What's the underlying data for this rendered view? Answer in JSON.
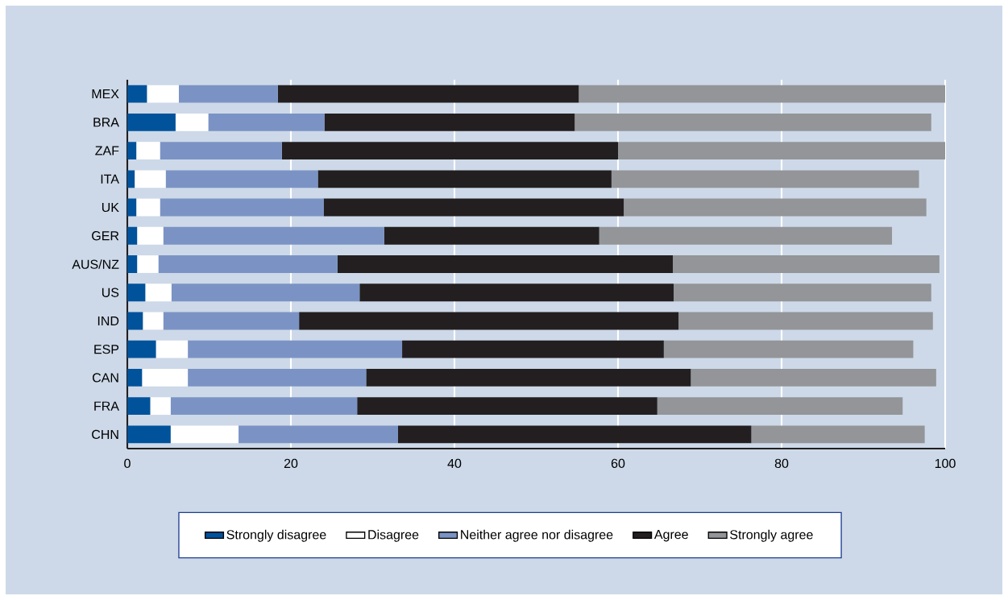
{
  "chart_data": {
    "type": "bar",
    "orientation": "horizontal",
    "stacked": true,
    "categories": [
      "MEX",
      "BRA",
      "ZAF",
      "ITA",
      "UK",
      "GER",
      "AUS/NZ",
      "US",
      "IND",
      "ESP",
      "CAN",
      "FRA",
      "CHN"
    ],
    "series": [
      {
        "name": "Strongly disagree",
        "color": "#00529b",
        "values": [
          2.4,
          5.9,
          1.1,
          0.9,
          1.1,
          1.2,
          1.2,
          2.2,
          1.9,
          3.5,
          1.8,
          2.8,
          5.3
        ]
      },
      {
        "name": "Disagree",
        "color": "#ffffff",
        "values": [
          3.9,
          4.0,
          2.9,
          3.8,
          2.9,
          3.2,
          2.6,
          3.2,
          2.5,
          3.9,
          5.6,
          2.5,
          8.3
        ]
      },
      {
        "name": "Neither agree nor disagree",
        "color": "#7b93c4",
        "values": [
          12.1,
          14.2,
          14.9,
          18.6,
          20.0,
          27.0,
          21.9,
          23.0,
          16.6,
          26.2,
          21.8,
          22.8,
          19.5
        ]
      },
      {
        "name": "Agree",
        "color": "#231f20",
        "values": [
          36.8,
          30.6,
          41.1,
          35.9,
          36.7,
          26.3,
          41.0,
          38.4,
          46.4,
          32.0,
          39.7,
          36.7,
          43.2
        ]
      },
      {
        "name": "Strongly agree",
        "color": "#939598",
        "values": [
          44.8,
          43.6,
          40.0,
          37.6,
          37.0,
          35.8,
          32.6,
          31.5,
          31.1,
          30.5,
          30.0,
          30.0,
          21.2
        ]
      }
    ],
    "xlim": [
      0,
      100
    ],
    "xticks": [
      0,
      20,
      40,
      60,
      80,
      100
    ],
    "grid": "x",
    "legend": "bottom"
  }
}
